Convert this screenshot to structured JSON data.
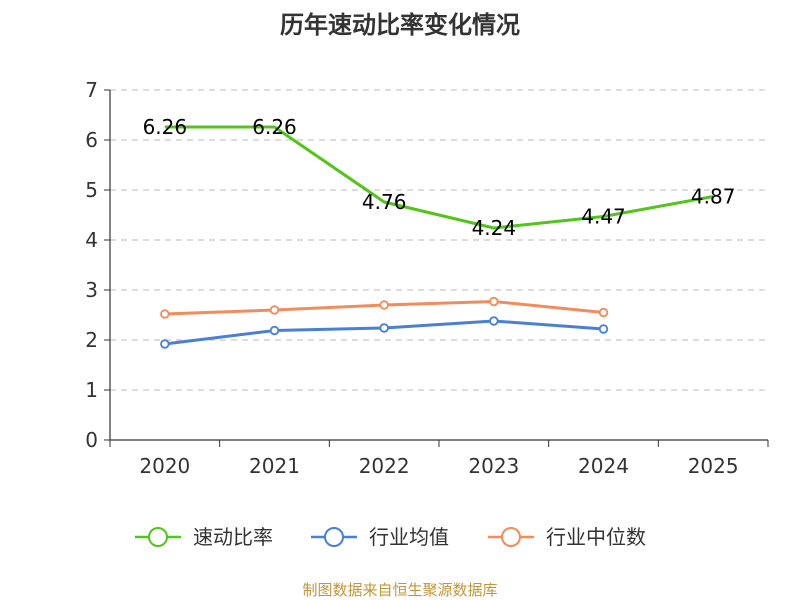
{
  "chart_data": {
    "type": "line",
    "title": "历年速动比率变化情况",
    "categories": [
      "2020",
      "2021",
      "2022",
      "2023",
      "2024",
      "2025"
    ],
    "ylim": [
      0,
      7
    ],
    "yticks": [
      0,
      1,
      2,
      3,
      4,
      5,
      6,
      7
    ],
    "grid": true,
    "legend_position": "bottom",
    "series": [
      {
        "name": "速动比率",
        "color": "#52c41a",
        "values": [
          6.26,
          6.26,
          4.76,
          4.24,
          4.47,
          4.87
        ],
        "labels": [
          "6.26",
          "6.26",
          "4.76",
          "4.24",
          "4.47",
          "4.87"
        ],
        "show_markers": false,
        "show_labels": true
      },
      {
        "name": "行业均值",
        "color": "#4a7fd6",
        "values": [
          1.92,
          2.19,
          2.24,
          2.38,
          2.22,
          null
        ],
        "show_markers": true,
        "show_labels": false
      },
      {
        "name": "行业中位数",
        "color": "#f28c5a",
        "values": [
          2.52,
          2.6,
          2.7,
          2.77,
          2.55,
          null
        ],
        "show_markers": true,
        "show_labels": false
      }
    ]
  },
  "source_text": "制图数据来自恒生聚源数据库",
  "source_color": "#c0963a"
}
